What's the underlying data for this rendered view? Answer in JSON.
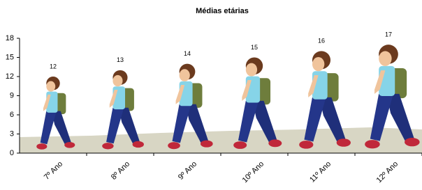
{
  "chart_data": {
    "type": "pictograph",
    "title": "Médias etárias",
    "categories": [
      "7º Ano",
      "8º Ano",
      "9º Ano",
      "10º Ano",
      "11º Ano",
      "12º Ano"
    ],
    "values": [
      12,
      13,
      14,
      15,
      16,
      17
    ],
    "ylim": [
      0,
      18
    ],
    "yticks": [
      0,
      3,
      6,
      9,
      12,
      15,
      18
    ],
    "grid": false
  }
}
